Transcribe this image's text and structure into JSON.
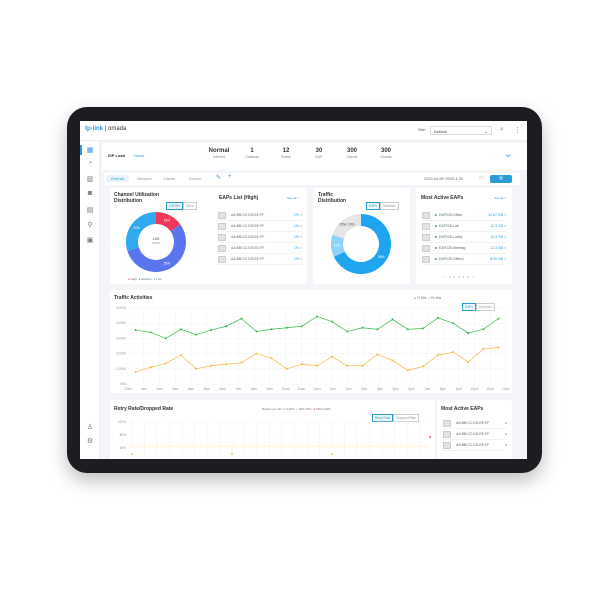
{
  "header": {
    "logo_brand": "tp-link",
    "logo_product": "omada",
    "site_label": "Site:",
    "site_value": "Default",
    "search_icon": "search-icon",
    "more_icon": "more-vertical-icon"
  },
  "sidebar": {
    "items": [
      "dashboard-icon",
      "statistics-icon",
      "map-icon",
      "devices-icon",
      "insight-icon",
      "location-icon",
      "log-icon"
    ],
    "bottom": [
      "account-icon",
      "settings-icon"
    ]
  },
  "summary": {
    "label": "ISP Load",
    "status": "Good",
    "stats": [
      {
        "value": "Normal",
        "label": "Internet"
      },
      {
        "value": "1",
        "label": "Gateway"
      },
      {
        "value": "12",
        "label": "Switch"
      },
      {
        "value": "30",
        "label": "EAP"
      },
      {
        "value": "300",
        "label": "Clients"
      },
      {
        "value": "300",
        "label": "Guests"
      }
    ]
  },
  "tabs": {
    "items": [
      "Overall",
      "Network",
      "Clients",
      "Device"
    ],
    "active": "Overall",
    "date_range": "2020-04-09~2020-4-30"
  },
  "channel": {
    "title1": "Channel Utilization",
    "title2": "Distribution",
    "seg": [
      "2.4GHz",
      "5GHz"
    ],
    "center_value": "120",
    "center_label": "TOTAL",
    "slices": [
      {
        "name": "High",
        "pct": 15,
        "label": "15%",
        "color": "#f0375b"
      },
      {
        "name": "Medium",
        "pct": 55,
        "label": "55%",
        "color": "#5b75ee"
      },
      {
        "name": "Low",
        "pct": 30,
        "label": "30%",
        "color": "#2fa9f0"
      }
    ]
  },
  "eaps_list": {
    "title": "EAPs List (High)",
    "see_all": "See All >",
    "rows": [
      {
        "mac": "AA:BB:CC:DD:EE:FF",
        "val": "1% >"
      },
      {
        "mac": "AA:BB:CC:DD:EE:FF",
        "val": "1% >"
      },
      {
        "mac": "AA:BB:CC:DD:EE:FF",
        "val": "1% >"
      },
      {
        "mac": "AA:BB:CC:DD:EE:FF",
        "val": "1% >"
      },
      {
        "mac": "AA:BB:CC:DD:EE:FF",
        "val": "1% >"
      }
    ]
  },
  "traffic_dist": {
    "title1": "Traffic",
    "title2": "Distribution",
    "seg": [
      "EAPs",
      "Switches"
    ],
    "slices": [
      {
        "pct": 68,
        "label": "68%",
        "color": "#1fa5f0"
      },
      {
        "pct": 12,
        "label": "12%",
        "color": "#8fd3fb"
      },
      {
        "pct": 20,
        "label": "Other 20%",
        "color": "#e6e6e6"
      }
    ]
  },
  "most_active": {
    "title": "Most Active EAPs",
    "see_all": "See All >",
    "rows": [
      {
        "name": "EAP225-Office",
        "val": "32.67 GB >"
      },
      {
        "name": "EAP225-Lab",
        "val": "12.3 GB >"
      },
      {
        "name": "EAP225-Lobby",
        "val": "12.3 GB >"
      },
      {
        "name": "EAP225-Meeting",
        "val": "12.3 GB >"
      },
      {
        "name": "EAP225-Office1",
        "val": "8.90 GB >"
      }
    ],
    "pages": [
      "<",
      "1",
      "2",
      "3",
      "4",
      "5",
      ">"
    ]
  },
  "chart_data": {
    "type": "line",
    "title": "Traffic Activities",
    "legend": [
      "Tx Bits",
      "Rx Bits"
    ],
    "seg": [
      "EAPs",
      "Switches"
    ],
    "yticks": [
      "0KB",
      "1,000K",
      "2,000K",
      "3,000K",
      "4,000K",
      "5,000K"
    ],
    "ylim": [
      0,
      5000
    ],
    "xticks": [
      "12am",
      "1am",
      "2am",
      "3am",
      "4am",
      "5am",
      "6am",
      "7am",
      "8am",
      "9am",
      "10am",
      "11am",
      "12pm",
      "1pm",
      "2pm",
      "3pm",
      "4pm",
      "5pm",
      "6pm",
      "7pm",
      "8pm",
      "9pm",
      "10pm",
      "11pm",
      "12am"
    ],
    "series": [
      {
        "name": "Tx Bits",
        "color": "#3cb54a",
        "values": [
          3550,
          3400,
          3000,
          3600,
          3250,
          3550,
          3800,
          4300,
          3450,
          3600,
          3700,
          3800,
          4450,
          4100,
          3450,
          3700,
          3600,
          4250,
          3600,
          3650,
          4350,
          4000,
          3350,
          3600,
          4300
        ]
      },
      {
        "name": "Rx Bits",
        "color": "#f5b83d",
        "values": [
          800,
          1100,
          1350,
          1900,
          1000,
          1200,
          1300,
          1400,
          2000,
          1700,
          1000,
          1300,
          1200,
          1800,
          1200,
          1200,
          1950,
          1550,
          900,
          1150,
          1900,
          2100,
          1450,
          2300,
          2400
        ]
      }
    ]
  },
  "retry": {
    "title": "Retry Rate/Dropped Rate",
    "legend_label": "Retries per AP:",
    "legend": [
      {
        "t": "0-40%",
        "c": "#3cb54a"
      },
      {
        "t": "40%-60%",
        "c": "#f5b83d"
      },
      {
        "t": "60%-100%",
        "c": "#e0245e"
      }
    ],
    "seg": [
      "Retry Rate",
      "Dropped Rate"
    ],
    "yticks": [
      "100%",
      "80%",
      "60%"
    ]
  },
  "most_active2": {
    "title": "Most Active EAPs",
    "rows": [
      "AA:BB:CC:DD:EE:FF",
      "AA:BB:CC:DD:EE:FF",
      "AA:BB:CC:DD:EE:FF"
    ]
  }
}
